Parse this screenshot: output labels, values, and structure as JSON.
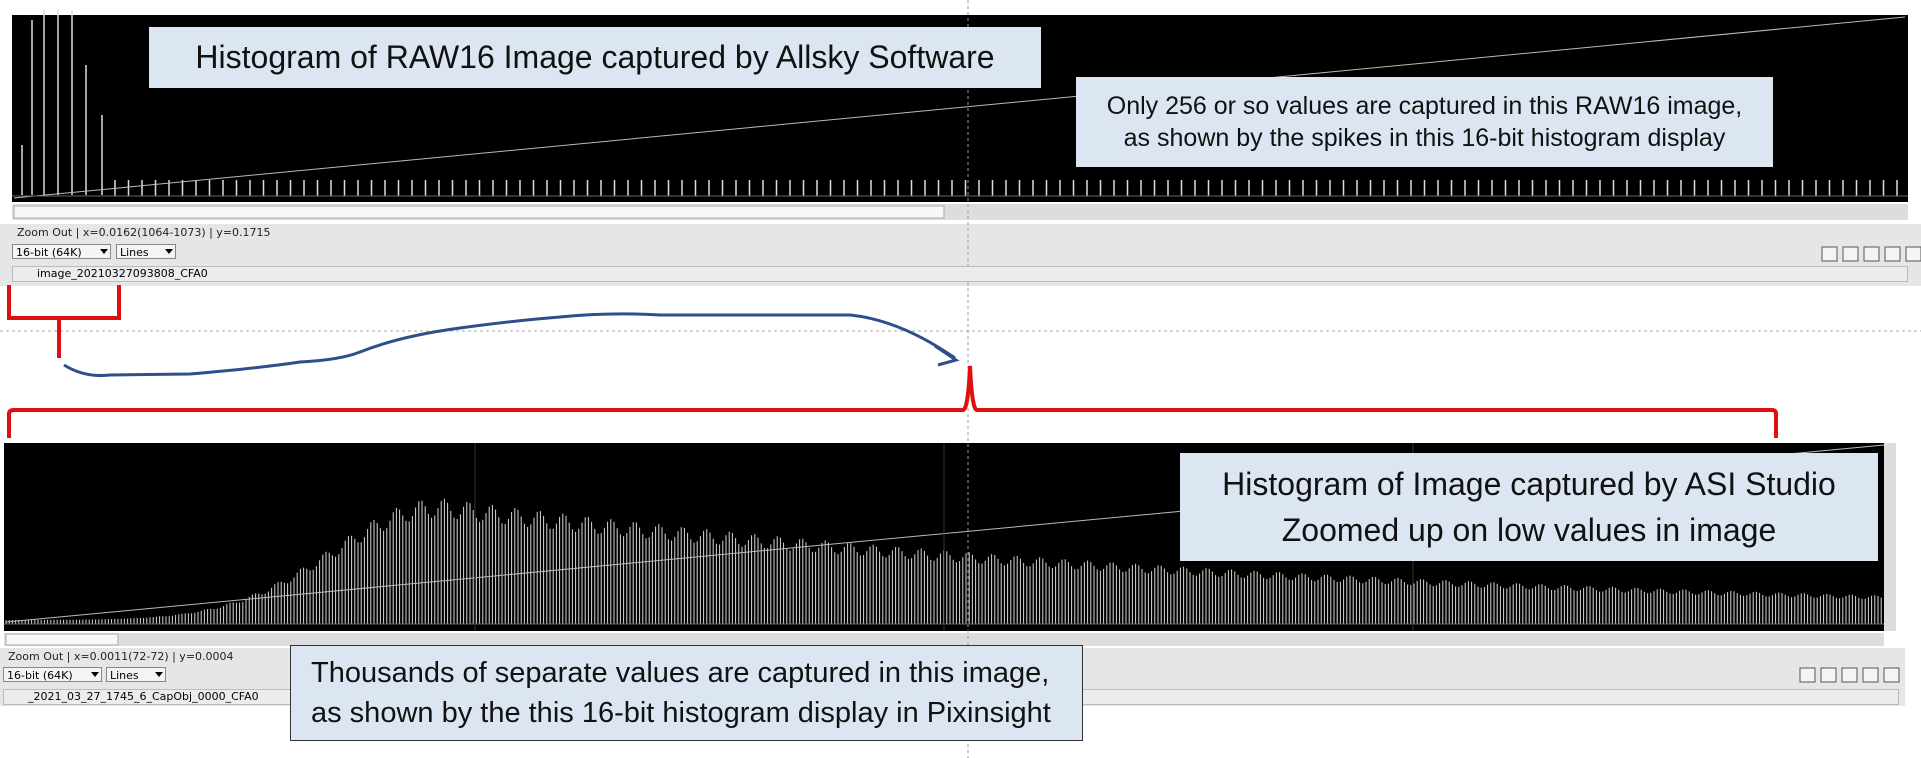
{
  "top_panel": {
    "title": "Histogram of RAW16 Image captured by Allsky Software",
    "note": [
      "Only 256 or so values are captured in this RAW16 image,",
      "as shown by the spikes in this 16-bit histogram display"
    ],
    "status": "Zoom Out | x=0.0162(1064-1073) | y=0.1715",
    "bit_depth": "16-bit (64K)",
    "mode": "Lines",
    "filename": "image_20210327093808_CFA0"
  },
  "bottom_panel": {
    "title": [
      "Histogram of Image captured by ASI Studio",
      "Zoomed up on low values in image"
    ],
    "status": "Zoom Out | x=0.0011(72-72) | y=0.0004",
    "bit_depth": "16-bit (64K)",
    "mode": "Lines",
    "filename": "_2021_03_27_1745_6_CapObj_0000_CFA0"
  },
  "bottom_note": [
    "Thousands of separate values are captured in this image,",
    "as shown by the this 16-bit histogram display in Pixinsight"
  ]
}
